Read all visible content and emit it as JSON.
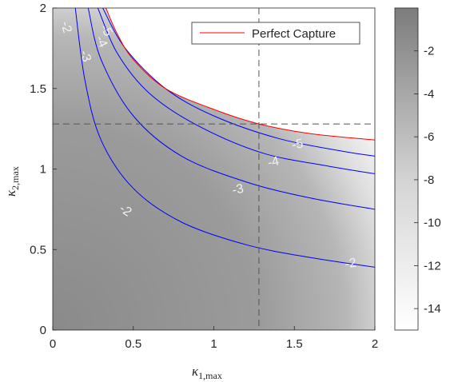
{
  "chart_data": {
    "type": "heatmap",
    "xlabel_main": "κ",
    "xlabel_sub": "1,max",
    "ylabel_main": "κ",
    "ylabel_sub": "2,max",
    "xlim": [
      0,
      2
    ],
    "ylim": [
      0,
      2
    ],
    "xticks": [
      "0",
      "0.5",
      "1",
      "1.5",
      "2"
    ],
    "yticks": [
      "0",
      "0.5",
      "1",
      "1.5",
      "2"
    ],
    "xtick_values": [
      0,
      0.5,
      1,
      1.5,
      2
    ],
    "ytick_values": [
      0,
      0.5,
      1,
      1.5,
      2
    ],
    "colorbar": {
      "range": [
        -15,
        0
      ],
      "ticks": [
        "-2",
        "-4",
        "-6",
        "-8",
        "-10",
        "-12",
        "-14"
      ],
      "tick_values": [
        -2,
        -4,
        -6,
        -8,
        -10,
        -12,
        -14
      ],
      "colormap": "gray, white at -15 to gray at 0"
    },
    "contours": [
      {
        "level": -2,
        "label": "-2",
        "color": "#0000ff",
        "points": [
          [
            0.14,
            2.0
          ],
          [
            0.2,
            1.55
          ],
          [
            0.3,
            1.18
          ],
          [
            0.5,
            0.88
          ],
          [
            0.8,
            0.67
          ],
          [
            1.2,
            0.53
          ],
          [
            1.6,
            0.45
          ],
          [
            2.0,
            0.39
          ]
        ]
      },
      {
        "level": -3,
        "label": "-3",
        "color": "#0000ff",
        "points": [
          [
            0.22,
            2.0
          ],
          [
            0.3,
            1.68
          ],
          [
            0.5,
            1.33
          ],
          [
            0.8,
            1.08
          ],
          [
            1.2,
            0.92
          ],
          [
            1.6,
            0.82
          ],
          [
            2.0,
            0.75
          ]
        ]
      },
      {
        "level": -4,
        "label": "-4",
        "color": "#0000ff",
        "points": [
          [
            0.28,
            2.0
          ],
          [
            0.4,
            1.72
          ],
          [
            0.6,
            1.47
          ],
          [
            0.9,
            1.27
          ],
          [
            1.3,
            1.1
          ],
          [
            1.7,
            1.02
          ],
          [
            2.0,
            0.97
          ]
        ]
      },
      {
        "level": -5,
        "label": "-5",
        "color": "#0000ff",
        "points": [
          [
            0.31,
            2.0
          ],
          [
            0.45,
            1.75
          ],
          [
            0.7,
            1.5
          ],
          [
            1.0,
            1.33
          ],
          [
            1.4,
            1.19
          ],
          [
            1.8,
            1.11
          ],
          [
            2.0,
            1.08
          ]
        ]
      }
    ],
    "boundary": {
      "name": "Perfect Capture",
      "color": "#ff0000",
      "points": [
        [
          0.33,
          2.0
        ],
        [
          0.4,
          1.84
        ],
        [
          0.5,
          1.68
        ],
        [
          0.7,
          1.5
        ],
        [
          1.0,
          1.37
        ],
        [
          1.28,
          1.28
        ],
        [
          1.6,
          1.22
        ],
        [
          2.0,
          1.18
        ]
      ]
    },
    "reference_lines": {
      "x": 1.28,
      "y": 1.28,
      "style": "dashed"
    },
    "legend": {
      "entries": [
        "Perfect Capture"
      ],
      "placement": "top-right"
    }
  }
}
